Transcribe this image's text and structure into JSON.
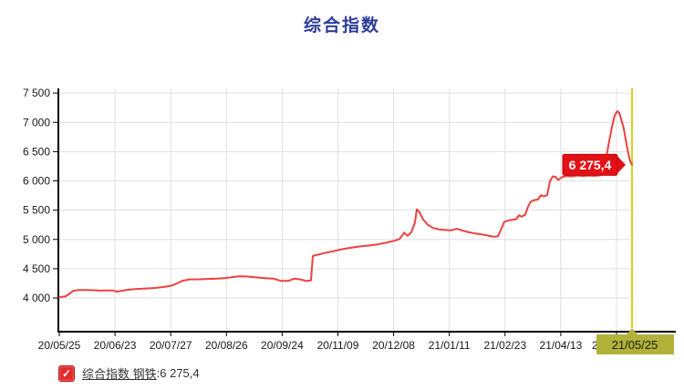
{
  "title": "综合指数",
  "legend": {
    "name": "综合指数 钢铁",
    "separator": " : ",
    "value": "6 275,4",
    "checkbox_glyph": "✓",
    "checkbox_color": "#e32b2b"
  },
  "chart_data": {
    "type": "line",
    "title": "综合指数",
    "legend_position": "bottom",
    "grid": true,
    "ylim": [
      3440,
      7580
    ],
    "y_axis": {
      "tick_values": [
        4000,
        4500,
        5000,
        5500,
        6000,
        6500,
        7000,
        7500
      ],
      "tick_labels": [
        "4 000",
        "4 500",
        "5 000",
        "5 500",
        "6 000",
        "6 500",
        "7 000",
        "7 500"
      ]
    },
    "x_axis": {
      "tick_labels": [
        "20/05/25",
        "20/06/23",
        "20/07/27",
        "20/08/26",
        "20/09/24",
        "20/11/09",
        "20/12/08",
        "21/01/11",
        "21/02/23",
        "21/04/13"
      ],
      "clipped_last_tick": "2",
      "crosshair_label": "21/05/25"
    },
    "last_point_label": "6 275,4",
    "colors": {
      "line": "#ee4040",
      "label_box": "#e31016",
      "label_text": "#ffffff",
      "crosshair": "#d3d41e",
      "highlight_box": "#b2b23a",
      "highlight_text": "#1a1a00",
      "grid": "#e0e0e0",
      "axis": "#000000",
      "tick_text": "#1a1a1a",
      "title": "#2e3d9b"
    },
    "series": [
      {
        "name": "综合指数 钢铁",
        "last_value": 6275.4,
        "points": [
          [
            65,
            4015
          ],
          [
            68,
            4020
          ],
          [
            72,
            4028
          ],
          [
            76,
            4070
          ],
          [
            80,
            4120
          ],
          [
            86,
            4135
          ],
          [
            94,
            4138
          ],
          [
            102,
            4132
          ],
          [
            110,
            4126
          ],
          [
            118,
            4128
          ],
          [
            124,
            4128
          ],
          [
            128,
            4108
          ],
          [
            133,
            4122
          ],
          [
            140,
            4140
          ],
          [
            150,
            4155
          ],
          [
            160,
            4162
          ],
          [
            170,
            4172
          ],
          [
            180,
            4188
          ],
          [
            188,
            4210
          ],
          [
            194,
            4248
          ],
          [
            200,
            4295
          ],
          [
            208,
            4318
          ],
          [
            218,
            4320
          ],
          [
            228,
            4326
          ],
          [
            238,
            4330
          ],
          [
            246,
            4338
          ],
          [
            254,
            4355
          ],
          [
            262,
            4370
          ],
          [
            270,
            4368
          ],
          [
            280,
            4352
          ],
          [
            290,
            4340
          ],
          [
            300,
            4330
          ],
          [
            308,
            4292
          ],
          [
            316,
            4292
          ],
          [
            323,
            4332
          ],
          [
            330,
            4315
          ],
          [
            336,
            4290
          ],
          [
            341,
            4302
          ],
          [
            343,
            4718
          ],
          [
            350,
            4745
          ],
          [
            358,
            4775
          ],
          [
            366,
            4800
          ],
          [
            374,
            4832
          ],
          [
            384,
            4856
          ],
          [
            394,
            4880
          ],
          [
            404,
            4896
          ],
          [
            414,
            4916
          ],
          [
            424,
            4946
          ],
          [
            432,
            4976
          ],
          [
            438,
            5006
          ],
          [
            443,
            5115
          ],
          [
            447,
            5062
          ],
          [
            451,
            5122
          ],
          [
            455,
            5290
          ],
          [
            457,
            5515
          ],
          [
            460,
            5465
          ],
          [
            464,
            5340
          ],
          [
            469,
            5252
          ],
          [
            475,
            5196
          ],
          [
            481,
            5172
          ],
          [
            488,
            5162
          ],
          [
            495,
            5156
          ],
          [
            501,
            5182
          ],
          [
            507,
            5152
          ],
          [
            514,
            5122
          ],
          [
            521,
            5102
          ],
          [
            528,
            5086
          ],
          [
            535,
            5066
          ],
          [
            541,
            5046
          ],
          [
            546,
            5052
          ],
          [
            550,
            5192
          ],
          [
            553,
            5302
          ],
          [
            558,
            5326
          ],
          [
            562,
            5336
          ],
          [
            566,
            5346
          ],
          [
            569,
            5412
          ],
          [
            572,
            5388
          ],
          [
            576,
            5426
          ],
          [
            579,
            5562
          ],
          [
            582,
            5646
          ],
          [
            586,
            5672
          ],
          [
            590,
            5682
          ],
          [
            593,
            5756
          ],
          [
            596,
            5736
          ],
          [
            600,
            5756
          ],
          [
            603,
            5992
          ],
          [
            606,
            6076
          ],
          [
            609,
            6070
          ],
          [
            612,
            6016
          ],
          [
            616,
            6062
          ],
          [
            621,
            6082
          ],
          [
            627,
            6076
          ],
          [
            633,
            6092
          ],
          [
            639,
            6082
          ],
          [
            645,
            6092
          ],
          [
            651,
            6086
          ],
          [
            656,
            6092
          ],
          [
            659,
            6096
          ],
          [
            662,
            6180
          ],
          [
            665,
            6420
          ],
          [
            668,
            6680
          ],
          [
            671,
            6920
          ],
          [
            674,
            7120
          ],
          [
            677,
            7192
          ],
          [
            679,
            7162
          ],
          [
            681,
            7062
          ],
          [
            684,
            6892
          ],
          [
            687,
            6622
          ],
          [
            689,
            6462
          ],
          [
            691,
            6332
          ],
          [
            693,
            6275
          ]
        ]
      }
    ]
  }
}
